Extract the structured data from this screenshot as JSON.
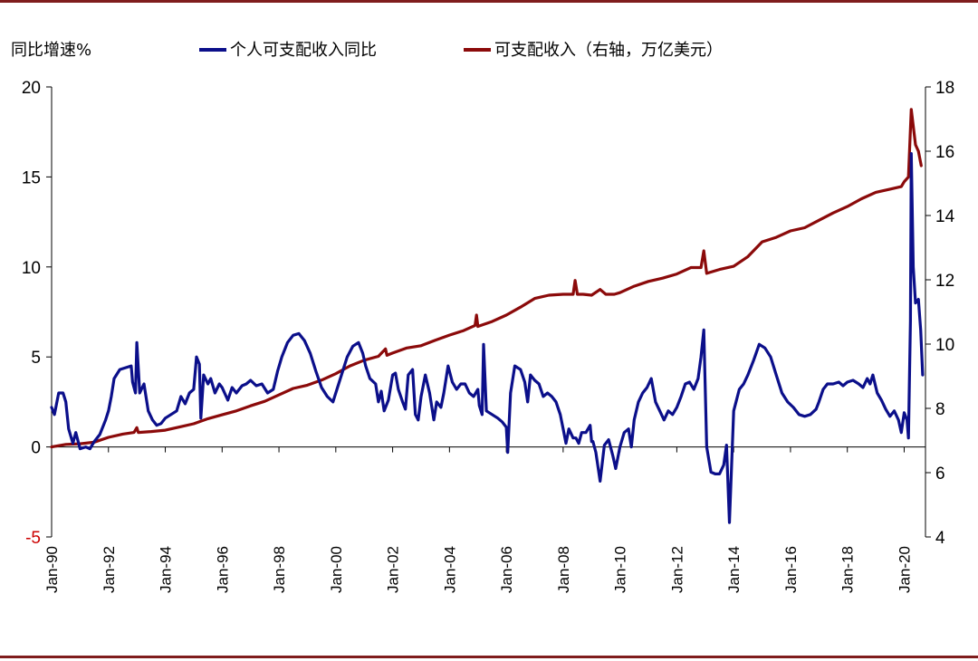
{
  "chart_data": {
    "type": "line",
    "title": "",
    "ylabel_left": "同比增速%",
    "ylim_left": [
      -5,
      20
    ],
    "yticks_left": [
      "20",
      "15",
      "10",
      "5",
      "0",
      "-5"
    ],
    "ylim_right": [
      4,
      18
    ],
    "yticks_right": [
      "18",
      "16",
      "14",
      "12",
      "10",
      "8",
      "6",
      "4"
    ],
    "xlim": [
      1990.0,
      2020.75
    ],
    "xtick_labels": [
      "Jan-90",
      "Jan-92",
      "Jan-94",
      "Jan-96",
      "Jan-98",
      "Jan-00",
      "Jan-02",
      "Jan-04",
      "Jan-06",
      "Jan-08",
      "Jan-10",
      "Jan-12",
      "Jan-14",
      "Jan-16",
      "Jan-18",
      "Jan-20"
    ],
    "xtick_years": [
      1990,
      1992,
      1994,
      1996,
      1998,
      2000,
      2002,
      2004,
      2006,
      2008,
      2010,
      2012,
      2014,
      2016,
      2018,
      2020
    ],
    "series": [
      {
        "name": "个人可支配收入同比",
        "axis": "left",
        "color": "#0b0f8a",
        "points": [
          [
            1990.0,
            2.2
          ],
          [
            1990.1,
            1.8
          ],
          [
            1990.25,
            3.0
          ],
          [
            1990.4,
            3.0
          ],
          [
            1990.5,
            2.5
          ],
          [
            1990.6,
            1.0
          ],
          [
            1990.75,
            0.2
          ],
          [
            1990.85,
            0.8
          ],
          [
            1991.0,
            -0.1
          ],
          [
            1991.2,
            0.0
          ],
          [
            1991.35,
            -0.1
          ],
          [
            1991.5,
            0.3
          ],
          [
            1991.7,
            0.7
          ],
          [
            1991.9,
            1.5
          ],
          [
            1992.0,
            2.0
          ],
          [
            1992.1,
            2.8
          ],
          [
            1992.2,
            3.8
          ],
          [
            1992.4,
            4.3
          ],
          [
            1992.6,
            4.4
          ],
          [
            1992.8,
            4.5
          ],
          [
            1992.85,
            3.6
          ],
          [
            1992.95,
            3.0
          ],
          [
            1993.0,
            5.8
          ],
          [
            1993.1,
            3.0
          ],
          [
            1993.25,
            3.5
          ],
          [
            1993.4,
            2.0
          ],
          [
            1993.55,
            1.5
          ],
          [
            1993.7,
            1.2
          ],
          [
            1993.85,
            1.3
          ],
          [
            1994.0,
            1.6
          ],
          [
            1994.2,
            1.8
          ],
          [
            1994.4,
            2.0
          ],
          [
            1994.55,
            2.8
          ],
          [
            1994.7,
            2.4
          ],
          [
            1994.85,
            3.0
          ],
          [
            1995.0,
            3.2
          ],
          [
            1995.1,
            5.0
          ],
          [
            1995.2,
            4.6
          ],
          [
            1995.25,
            1.6
          ],
          [
            1995.35,
            4.0
          ],
          [
            1995.5,
            3.5
          ],
          [
            1995.6,
            3.8
          ],
          [
            1995.75,
            3.0
          ],
          [
            1995.9,
            3.5
          ],
          [
            1996.0,
            3.3
          ],
          [
            1996.2,
            2.6
          ],
          [
            1996.35,
            3.3
          ],
          [
            1996.5,
            3.0
          ],
          [
            1996.7,
            3.4
          ],
          [
            1996.85,
            3.5
          ],
          [
            1997.0,
            3.7
          ],
          [
            1997.2,
            3.4
          ],
          [
            1997.4,
            3.5
          ],
          [
            1997.6,
            3.0
          ],
          [
            1997.8,
            3.2
          ],
          [
            1997.95,
            4.2
          ],
          [
            1998.1,
            5.0
          ],
          [
            1998.3,
            5.8
          ],
          [
            1998.5,
            6.2
          ],
          [
            1998.7,
            6.3
          ],
          [
            1998.9,
            5.9
          ],
          [
            1999.1,
            5.2
          ],
          [
            1999.3,
            4.2
          ],
          [
            1999.5,
            3.3
          ],
          [
            1999.7,
            2.8
          ],
          [
            1999.9,
            2.5
          ],
          [
            2000.0,
            3.0
          ],
          [
            2000.2,
            4.0
          ],
          [
            2000.4,
            5.0
          ],
          [
            2000.6,
            5.6
          ],
          [
            2000.8,
            5.8
          ],
          [
            2000.95,
            5.2
          ],
          [
            2001.05,
            4.5
          ],
          [
            2001.2,
            3.8
          ],
          [
            2001.4,
            3.5
          ],
          [
            2001.5,
            2.5
          ],
          [
            2001.6,
            3.1
          ],
          [
            2001.7,
            2.0
          ],
          [
            2001.85,
            2.6
          ],
          [
            2002.0,
            4.0
          ],
          [
            2002.1,
            4.1
          ],
          [
            2002.2,
            3.2
          ],
          [
            2002.35,
            2.5
          ],
          [
            2002.45,
            2.1
          ],
          [
            2002.55,
            4.0
          ],
          [
            2002.7,
            4.3
          ],
          [
            2002.8,
            1.8
          ],
          [
            2002.9,
            1.5
          ],
          [
            2003.0,
            2.8
          ],
          [
            2003.15,
            4.0
          ],
          [
            2003.3,
            3.0
          ],
          [
            2003.45,
            1.5
          ],
          [
            2003.55,
            2.5
          ],
          [
            2003.7,
            2.2
          ],
          [
            2003.8,
            3.0
          ],
          [
            2003.95,
            4.5
          ],
          [
            2004.1,
            3.6
          ],
          [
            2004.25,
            3.2
          ],
          [
            2004.4,
            3.5
          ],
          [
            2004.55,
            3.5
          ],
          [
            2004.7,
            3.0
          ],
          [
            2004.85,
            2.8
          ],
          [
            2005.0,
            3.2
          ],
          [
            2005.05,
            2.3
          ],
          [
            2005.15,
            1.8
          ],
          [
            2005.2,
            5.7
          ],
          [
            2005.3,
            2.0
          ],
          [
            2005.5,
            1.8
          ],
          [
            2005.7,
            1.6
          ],
          [
            2005.85,
            1.4
          ],
          [
            2006.0,
            1.1
          ],
          [
            2006.05,
            -0.3
          ],
          [
            2006.15,
            3.0
          ],
          [
            2006.3,
            4.5
          ],
          [
            2006.5,
            4.3
          ],
          [
            2006.65,
            3.6
          ],
          [
            2006.75,
            2.5
          ],
          [
            2006.85,
            4.0
          ],
          [
            2007.0,
            3.7
          ],
          [
            2007.15,
            3.5
          ],
          [
            2007.3,
            2.8
          ],
          [
            2007.45,
            3.0
          ],
          [
            2007.6,
            2.8
          ],
          [
            2007.75,
            2.5
          ],
          [
            2007.9,
            1.8
          ],
          [
            2008.0,
            1.0
          ],
          [
            2008.1,
            0.2
          ],
          [
            2008.2,
            1.0
          ],
          [
            2008.35,
            0.5
          ],
          [
            2008.45,
            0.5
          ],
          [
            2008.55,
            0.2
          ],
          [
            2008.65,
            0.8
          ],
          [
            2008.8,
            0.8
          ],
          [
            2008.95,
            1.2
          ],
          [
            2009.0,
            0.3
          ],
          [
            2009.05,
            0.3
          ],
          [
            2009.15,
            -0.3
          ],
          [
            2009.3,
            -1.9
          ],
          [
            2009.45,
            0.1
          ],
          [
            2009.6,
            0.4
          ],
          [
            2009.75,
            -0.5
          ],
          [
            2009.85,
            -1.2
          ],
          [
            2010.0,
            0.0
          ],
          [
            2010.15,
            0.8
          ],
          [
            2010.3,
            1.0
          ],
          [
            2010.4,
            0.0
          ],
          [
            2010.5,
            1.5
          ],
          [
            2010.65,
            2.5
          ],
          [
            2010.8,
            3.0
          ],
          [
            2010.95,
            3.3
          ],
          [
            2011.1,
            3.8
          ],
          [
            2011.25,
            2.5
          ],
          [
            2011.4,
            2.0
          ],
          [
            2011.55,
            1.5
          ],
          [
            2011.7,
            2.0
          ],
          [
            2011.85,
            1.8
          ],
          [
            2012.0,
            2.2
          ],
          [
            2012.15,
            2.8
          ],
          [
            2012.3,
            3.5
          ],
          [
            2012.45,
            3.6
          ],
          [
            2012.6,
            3.2
          ],
          [
            2012.75,
            3.8
          ],
          [
            2012.85,
            5.0
          ],
          [
            2012.95,
            6.5
          ],
          [
            2013.05,
            0.0
          ],
          [
            2013.2,
            -1.4
          ],
          [
            2013.35,
            -1.5
          ],
          [
            2013.5,
            -1.5
          ],
          [
            2013.65,
            -1.0
          ],
          [
            2013.75,
            0.1
          ],
          [
            2013.85,
            -4.2
          ],
          [
            2014.0,
            2.0
          ],
          [
            2014.2,
            3.2
          ],
          [
            2014.35,
            3.5
          ],
          [
            2014.5,
            4.0
          ],
          [
            2014.7,
            4.8
          ],
          [
            2014.9,
            5.7
          ],
          [
            2015.1,
            5.5
          ],
          [
            2015.3,
            5.0
          ],
          [
            2015.5,
            4.0
          ],
          [
            2015.7,
            3.0
          ],
          [
            2015.9,
            2.5
          ],
          [
            2016.1,
            2.2
          ],
          [
            2016.3,
            1.8
          ],
          [
            2016.5,
            1.7
          ],
          [
            2016.7,
            1.8
          ],
          [
            2016.9,
            2.1
          ],
          [
            2017.0,
            2.5
          ],
          [
            2017.15,
            3.2
          ],
          [
            2017.3,
            3.5
          ],
          [
            2017.5,
            3.5
          ],
          [
            2017.7,
            3.6
          ],
          [
            2017.85,
            3.4
          ],
          [
            2018.0,
            3.6
          ],
          [
            2018.2,
            3.7
          ],
          [
            2018.4,
            3.5
          ],
          [
            2018.55,
            3.3
          ],
          [
            2018.7,
            3.8
          ],
          [
            2018.8,
            3.5
          ],
          [
            2018.9,
            4.0
          ],
          [
            2019.05,
            3.0
          ],
          [
            2019.2,
            2.6
          ],
          [
            2019.35,
            2.1
          ],
          [
            2019.5,
            1.7
          ],
          [
            2019.65,
            2.0
          ],
          [
            2019.8,
            1.5
          ],
          [
            2019.9,
            0.8
          ],
          [
            2020.0,
            1.9
          ],
          [
            2020.1,
            1.5
          ],
          [
            2020.15,
            0.5
          ],
          [
            2020.22,
            7.0
          ],
          [
            2020.25,
            16.3
          ],
          [
            2020.32,
            10.0
          ],
          [
            2020.4,
            8.0
          ],
          [
            2020.5,
            8.2
          ],
          [
            2020.58,
            6.5
          ],
          [
            2020.65,
            4.0
          ]
        ]
      },
      {
        "name": "可支配收入（右轴，万亿美元）",
        "axis": "right",
        "color": "#8b0a0a",
        "points": [
          [
            1990.0,
            6.8
          ],
          [
            1990.5,
            6.88
          ],
          [
            1991.0,
            6.9
          ],
          [
            1991.5,
            6.95
          ],
          [
            1992.0,
            7.1
          ],
          [
            1992.5,
            7.2
          ],
          [
            1992.9,
            7.25
          ],
          [
            1993.0,
            7.4
          ],
          [
            1993.05,
            7.25
          ],
          [
            1993.5,
            7.28
          ],
          [
            1994.0,
            7.32
          ],
          [
            1994.5,
            7.42
          ],
          [
            1995.0,
            7.52
          ],
          [
            1995.5,
            7.68
          ],
          [
            1996.0,
            7.8
          ],
          [
            1996.5,
            7.92
          ],
          [
            1997.0,
            8.08
          ],
          [
            1997.5,
            8.22
          ],
          [
            1998.0,
            8.42
          ],
          [
            1998.5,
            8.62
          ],
          [
            1999.0,
            8.72
          ],
          [
            1999.5,
            8.88
          ],
          [
            2000.0,
            9.08
          ],
          [
            2000.5,
            9.32
          ],
          [
            2001.0,
            9.5
          ],
          [
            2001.5,
            9.62
          ],
          [
            2001.75,
            9.85
          ],
          [
            2001.8,
            9.65
          ],
          [
            2002.0,
            9.72
          ],
          [
            2002.5,
            9.88
          ],
          [
            2003.0,
            9.95
          ],
          [
            2003.5,
            10.12
          ],
          [
            2004.0,
            10.28
          ],
          [
            2004.5,
            10.42
          ],
          [
            2004.9,
            10.58
          ],
          [
            2004.95,
            10.9
          ],
          [
            2005.0,
            10.55
          ],
          [
            2005.5,
            10.7
          ],
          [
            2006.0,
            10.9
          ],
          [
            2006.5,
            11.15
          ],
          [
            2007.0,
            11.42
          ],
          [
            2007.5,
            11.52
          ],
          [
            2008.0,
            11.55
          ],
          [
            2008.35,
            11.55
          ],
          [
            2008.42,
            11.98
          ],
          [
            2008.5,
            11.55
          ],
          [
            2008.7,
            11.55
          ],
          [
            2009.0,
            11.52
          ],
          [
            2009.3,
            11.7
          ],
          [
            2009.5,
            11.55
          ],
          [
            2009.8,
            11.55
          ],
          [
            2010.0,
            11.6
          ],
          [
            2010.5,
            11.8
          ],
          [
            2011.0,
            11.95
          ],
          [
            2011.5,
            12.05
          ],
          [
            2012.0,
            12.18
          ],
          [
            2012.5,
            12.38
          ],
          [
            2012.85,
            12.38
          ],
          [
            2012.95,
            12.9
          ],
          [
            2013.05,
            12.2
          ],
          [
            2013.5,
            12.32
          ],
          [
            2014.0,
            12.42
          ],
          [
            2014.5,
            12.72
          ],
          [
            2015.0,
            13.18
          ],
          [
            2015.5,
            13.32
          ],
          [
            2016.0,
            13.52
          ],
          [
            2016.5,
            13.62
          ],
          [
            2017.0,
            13.85
          ],
          [
            2017.5,
            14.08
          ],
          [
            2018.0,
            14.28
          ],
          [
            2018.5,
            14.52
          ],
          [
            2019.0,
            14.72
          ],
          [
            2019.5,
            14.82
          ],
          [
            2019.9,
            14.9
          ],
          [
            2020.0,
            15.05
          ],
          [
            2020.15,
            15.2
          ],
          [
            2020.25,
            17.3
          ],
          [
            2020.4,
            16.2
          ],
          [
            2020.5,
            16.0
          ],
          [
            2020.6,
            15.55
          ]
        ]
      }
    ]
  }
}
